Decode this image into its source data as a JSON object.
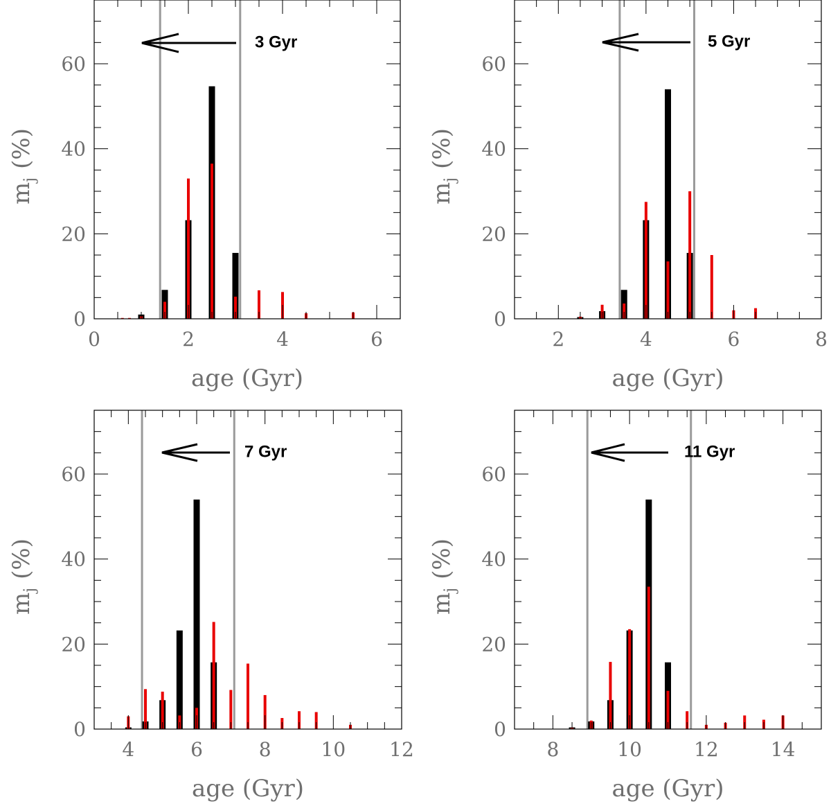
{
  "colors": {
    "model": "#000000",
    "recovered": "#e80000",
    "marker": "#9a9a9a",
    "axis": "#000000",
    "text": "#6f6f6f"
  },
  "chart_data": [
    {
      "type": "bar",
      "xlabel": "age (Gyr)",
      "ylabel": "m",
      "ylabel_sub": "j",
      "ylabel_unit": "(%)",
      "xlim": [
        0,
        6.5
      ],
      "ylim": [
        0,
        75
      ],
      "xticks": [
        0,
        2,
        4,
        6
      ],
      "yticks": [
        0,
        20,
        40,
        60
      ],
      "annotation": "3 Gyr",
      "vlines": [
        1.4,
        3.1
      ],
      "series": [
        {
          "values": [
            [
              1.0,
              1.0
            ],
            [
              1.5,
              6.8
            ],
            [
              2.0,
              23.2
            ],
            [
              2.5,
              54.7
            ],
            [
              3.0,
              15.5
            ]
          ]
        },
        {
          "values": [
            [
              0.6,
              0.2
            ],
            [
              0.75,
              0.2
            ],
            [
              1.0,
              0.6
            ],
            [
              1.5,
              4.0
            ],
            [
              2.0,
              33.0
            ],
            [
              2.5,
              36.5
            ],
            [
              3.0,
              5.2
            ],
            [
              3.5,
              6.7
            ],
            [
              4.0,
              6.3
            ],
            [
              4.5,
              1.3
            ],
            [
              5.5,
              1.5
            ]
          ]
        }
      ]
    },
    {
      "type": "bar",
      "xlabel": "age (Gyr)",
      "ylabel": "m",
      "ylabel_sub": "j",
      "ylabel_unit": "(%)",
      "xlim": [
        1,
        8
      ],
      "ylim": [
        0,
        75
      ],
      "xticks": [
        2,
        4,
        6,
        8
      ],
      "yticks": [
        0,
        20,
        40,
        60
      ],
      "annotation": "5 Gyr",
      "vlines": [
        3.4,
        5.1
      ],
      "series": [
        {
          "values": [
            [
              2.5,
              0.4
            ],
            [
              3.0,
              1.8
            ],
            [
              3.5,
              6.8
            ],
            [
              4.0,
              23.2
            ],
            [
              4.5,
              54.0
            ],
            [
              5.0,
              15.5
            ]
          ]
        },
        {
          "values": [
            [
              2.5,
              0.5
            ],
            [
              3.0,
              3.3
            ],
            [
              3.5,
              3.6
            ],
            [
              4.0,
              27.5
            ],
            [
              4.5,
              13.5
            ],
            [
              5.0,
              30.0
            ],
            [
              5.5,
              15.0
            ],
            [
              6.0,
              2.0
            ],
            [
              6.5,
              2.5
            ]
          ]
        }
      ]
    },
    {
      "type": "bar",
      "xlabel": "age (Gyr)",
      "ylabel": "m",
      "ylabel_sub": "j",
      "ylabel_unit": "(%)",
      "xlim": [
        3,
        12
      ],
      "ylim": [
        0,
        75
      ],
      "xticks": [
        4,
        6,
        8,
        10,
        12
      ],
      "yticks": [
        0,
        20,
        40,
        60
      ],
      "annotation": "7 Gyr",
      "vlines": [
        4.4,
        7.1
      ],
      "series": [
        {
          "values": [
            [
              4.0,
              0.4
            ],
            [
              4.5,
              1.8
            ],
            [
              5.0,
              6.8
            ],
            [
              5.5,
              23.2
            ],
            [
              6.0,
              54.0
            ],
            [
              6.5,
              15.7
            ]
          ]
        },
        {
          "values": [
            [
              4.0,
              3.0
            ],
            [
              4.5,
              9.4
            ],
            [
              5.0,
              8.8
            ],
            [
              5.5,
              3.2
            ],
            [
              6.0,
              5.0
            ],
            [
              6.5,
              25.2
            ],
            [
              7.0,
              9.2
            ],
            [
              7.5,
              15.4
            ],
            [
              8.0,
              8.0
            ],
            [
              8.5,
              2.6
            ],
            [
              9.0,
              4.2
            ],
            [
              9.5,
              4.0
            ],
            [
              10.5,
              1.0
            ]
          ]
        }
      ]
    },
    {
      "type": "bar",
      "xlabel": "age (Gyr)",
      "ylabel": "m",
      "ylabel_sub": "j",
      "ylabel_unit": "(%)",
      "xlim": [
        7,
        15
      ],
      "ylim": [
        0,
        75
      ],
      "xticks": [
        8,
        10,
        12,
        14
      ],
      "yticks": [
        0,
        20,
        40,
        60
      ],
      "annotation": "11 Gyr",
      "vlines": [
        8.9,
        11.6
      ],
      "series": [
        {
          "values": [
            [
              8.5,
              0.4
            ],
            [
              9.0,
              1.8
            ],
            [
              9.5,
              6.8
            ],
            [
              10.0,
              23.2
            ],
            [
              10.5,
              54.0
            ],
            [
              11.0,
              15.7
            ]
          ]
        },
        {
          "values": [
            [
              8.5,
              0.3
            ],
            [
              9.0,
              2.0
            ],
            [
              9.5,
              15.8
            ],
            [
              10.0,
              23.5
            ],
            [
              10.5,
              33.5
            ],
            [
              11.0,
              9.0
            ],
            [
              11.5,
              4.2
            ],
            [
              12.0,
              1.0
            ],
            [
              12.5,
              1.5
            ],
            [
              13.0,
              3.2
            ],
            [
              13.5,
              2.2
            ],
            [
              14.0,
              3.2
            ]
          ]
        }
      ]
    }
  ]
}
